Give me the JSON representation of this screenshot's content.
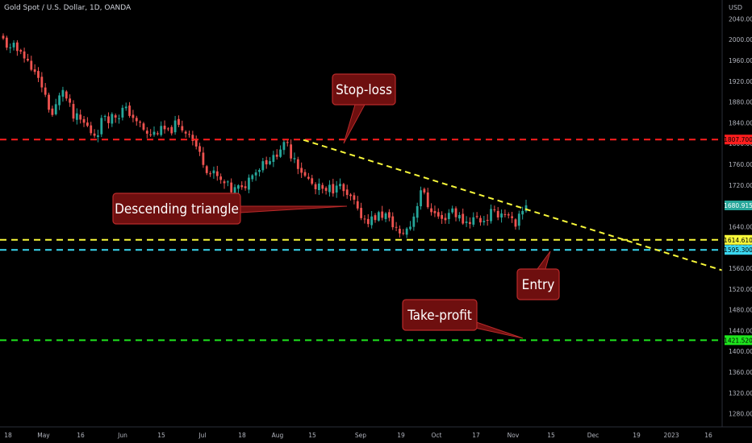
{
  "header": {
    "symbol_title": "Gold Spot / U.S. Dollar, 1D, OANDA",
    "currency": "USD"
  },
  "chart_data": {
    "type": "candlestick",
    "title": "Gold Spot / U.S. Dollar, 1D, OANDA",
    "ylabel": "USD",
    "ylim": [
      1255,
      2080
    ],
    "y_ticks": [
      2040,
      2000,
      1960,
      1920,
      1880,
      1840,
      1800,
      1760,
      1720,
      1680,
      1640,
      1600,
      1560,
      1520,
      1480,
      1440,
      1400,
      1360,
      1320,
      1280
    ],
    "x_ticks": [
      "18",
      "May",
      "16",
      "Jun",
      "15",
      "Jul",
      "18",
      "Aug",
      "15",
      "Sep",
      "19",
      "Oct",
      "17",
      "Nov",
      "15",
      "Dec",
      "19",
      "2023",
      "16"
    ],
    "grid": false,
    "price_close": [
      1985,
      1977,
      1942,
      1908,
      1855,
      1903,
      1848,
      1840,
      1815,
      1853,
      1850,
      1871,
      1843,
      1819,
      1818,
      1829,
      1836,
      1818,
      1784,
      1742,
      1730,
      1706,
      1716,
      1739,
      1766,
      1778,
      1803,
      1772,
      1738,
      1712,
      1709,
      1719,
      1701,
      1675,
      1645,
      1668,
      1657,
      1627,
      1640,
      1710,
      1668,
      1655,
      1675,
      1646,
      1658,
      1651,
      1672,
      1663,
      1640,
      1681
    ],
    "levels": [
      {
        "label": "Stop-loss",
        "value": 1807.7,
        "price_label": "1807.700",
        "color": "#ff1e1e"
      },
      {
        "label": "Entry",
        "value": 1614.61,
        "price_label": "1614.610",
        "color": "#f8f83a"
      },
      {
        "value": 1595.3,
        "price_label": "1595.300",
        "color": "#3ad7f0"
      },
      {
        "label": "Take-profit",
        "value": 1421.52,
        "price_label": "1421.520",
        "color": "#1ee61e"
      }
    ],
    "last_price": {
      "value": 1680.915,
      "price_label": "1680.915"
    },
    "trendline": {
      "from": {
        "x": "Aug 10",
        "y": 1807
      },
      "to": {
        "x": "Jan 15",
        "y": 1556
      }
    },
    "annotations": [
      "Stop-loss",
      "Descending triangle",
      "Entry",
      "Take-profit"
    ]
  }
}
